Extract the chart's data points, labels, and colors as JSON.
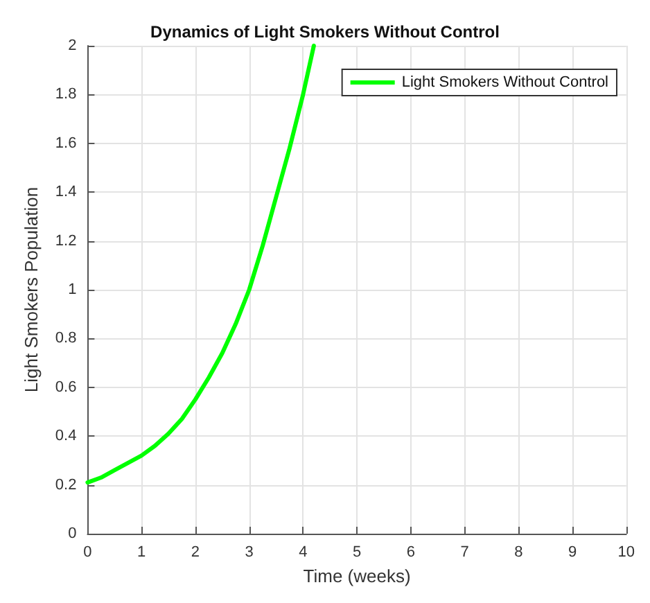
{
  "chart_data": {
    "type": "line",
    "title": "Dynamics of Light Smokers Without Control",
    "xlabel": "Time (weeks)",
    "ylabel": "Light Smokers Population",
    "series": [
      {
        "name": "Light Smokers Without Control",
        "color": "#00ff00",
        "x": [
          0,
          0.25,
          0.5,
          0.75,
          1,
          1.25,
          1.5,
          1.75,
          2,
          2.25,
          2.5,
          2.75,
          3,
          3.25,
          3.5,
          3.75,
          4,
          4.2
        ],
        "values": [
          0.21,
          0.23,
          0.26,
          0.29,
          0.32,
          0.36,
          0.41,
          0.47,
          0.55,
          0.64,
          0.74,
          0.86,
          1.0,
          1.18,
          1.38,
          1.58,
          1.8,
          2.0
        ]
      }
    ],
    "xlim": [
      0,
      10
    ],
    "xticks": [
      0,
      1,
      2,
      3,
      4,
      5,
      6,
      7,
      8,
      9,
      10
    ],
    "ylim": [
      0,
      2
    ],
    "yticks": [
      0,
      0.2,
      0.4,
      0.6,
      0.8,
      1,
      1.2,
      1.4,
      1.6,
      1.8,
      2
    ],
    "grid": true,
    "legend": "top right",
    "marker": "none",
    "line_style": "solid"
  }
}
